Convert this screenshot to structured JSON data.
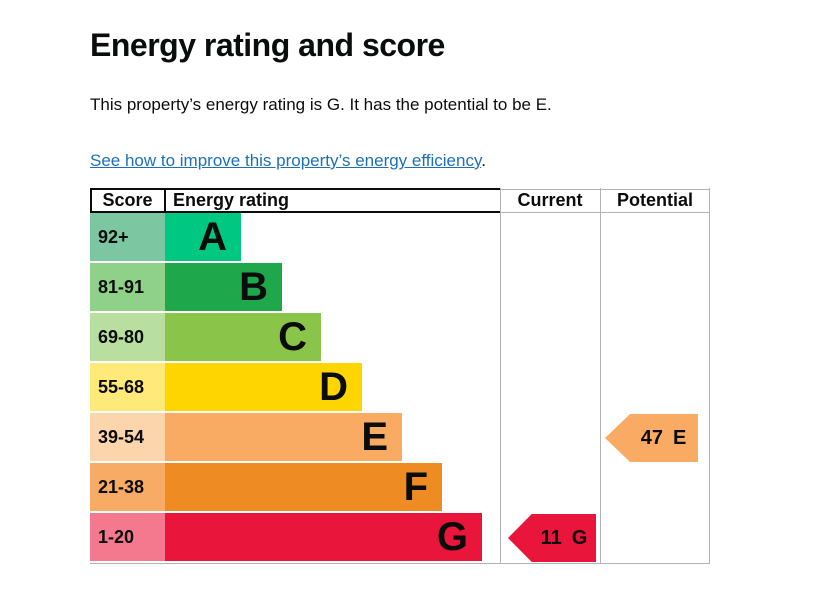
{
  "page": {
    "title": "Energy rating and score",
    "summary": "This property’s energy rating is G. It has the potential to be E.",
    "link_text": "See how to improve this property’s energy efficiency",
    "link_suffix": "."
  },
  "colors": {
    "text": "#0b0c0c",
    "link_blue": "#1d70b8",
    "grid_black": "#0b0c0c",
    "grid_gray": "#b1b4b6"
  },
  "chart_data": {
    "type": "bar",
    "title": "Energy rating and score",
    "columns": {
      "score": "Score",
      "rating": "Energy rating",
      "current": "Current",
      "potential": "Potential"
    },
    "bands": [
      {
        "range": "92+",
        "letter": "A",
        "band_color": "#00c781",
        "score_color": "#7cc6a2",
        "band_width": 76
      },
      {
        "range": "81-91",
        "letter": "B",
        "band_color": "#1fa84b",
        "score_color": "#8fd189",
        "band_width": 117
      },
      {
        "range": "69-80",
        "letter": "C",
        "band_color": "#8ac549",
        "score_color": "#b8dfa0",
        "band_width": 156
      },
      {
        "range": "55-68",
        "letter": "D",
        "band_color": "#ffd500",
        "score_color": "#ffe978",
        "band_width": 197
      },
      {
        "range": "39-54",
        "letter": "E",
        "band_color": "#f9ab63",
        "score_color": "#fdd5ac",
        "band_width": 237
      },
      {
        "range": "21-38",
        "letter": "F",
        "band_color": "#ee8b22",
        "score_color": "#f8ab64",
        "band_width": 277
      },
      {
        "range": "1-20",
        "letter": "G",
        "band_color": "#e9153b",
        "score_color": "#f4788e",
        "band_width": 317
      }
    ],
    "current": {
      "score": "11",
      "band": "G",
      "row_index": 6,
      "color": "#e9153b"
    },
    "potential": {
      "score": "47",
      "band": "E",
      "row_index": 4,
      "color": "#f9ab63"
    }
  }
}
